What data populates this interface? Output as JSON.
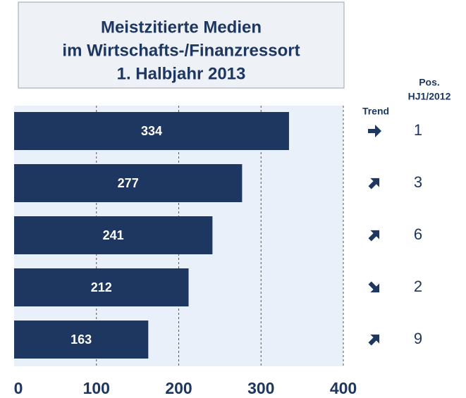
{
  "chart_data": {
    "type": "bar",
    "orientation": "horizontal",
    "title": [
      "Meistzitierte Medien",
      "im Wirtschafts-/Finanzressort",
      "1. Halbjahr 2013"
    ],
    "categories": [
      null,
      null,
      null,
      null,
      null
    ],
    "values": [
      334,
      277,
      241,
      212,
      163
    ],
    "color": "#1e3760",
    "xlim": [
      0,
      400
    ],
    "xticks": [
      0,
      100,
      200,
      300,
      400
    ],
    "grid": true,
    "trend_header": "Trend",
    "trend": [
      "right",
      "up",
      "up",
      "down",
      "up"
    ],
    "position_header": [
      "Pos.",
      "HJ1/2012"
    ],
    "previous_positions": [
      1,
      3,
      6,
      2,
      9
    ]
  }
}
